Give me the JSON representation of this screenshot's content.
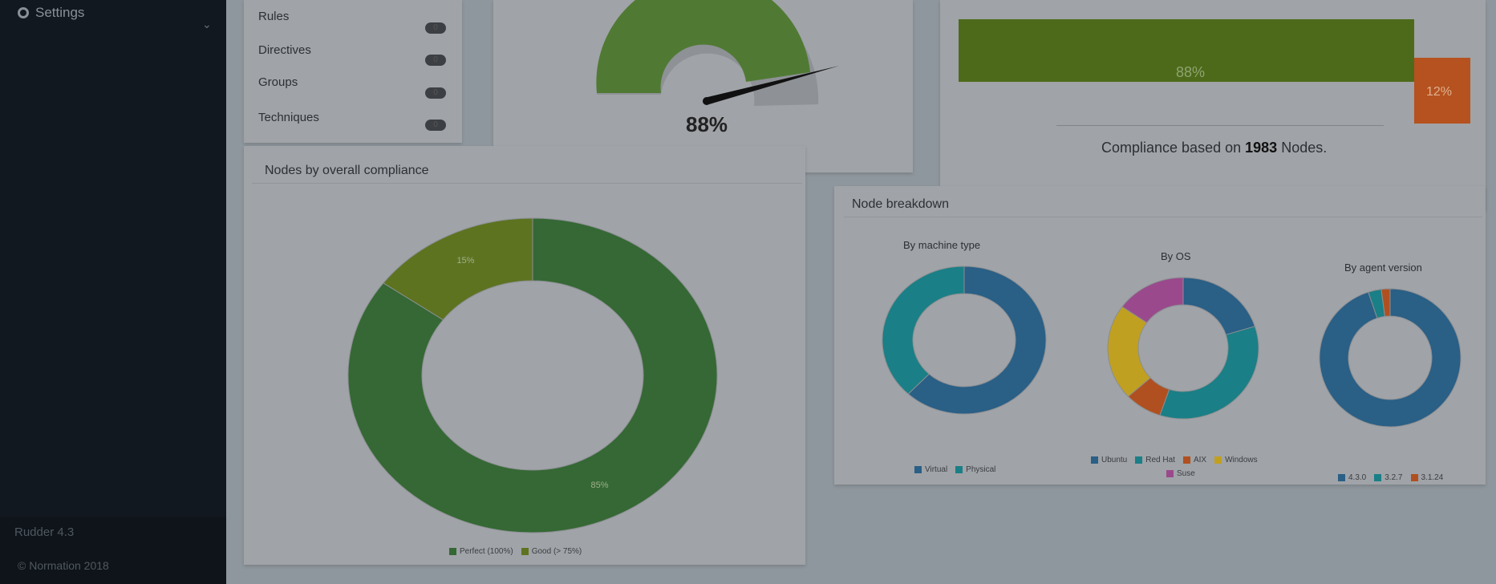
{
  "sidebar": {
    "settings_label": "Settings",
    "version": "Rudder 4.3",
    "copyright": "© Normation 2018"
  },
  "summary": {
    "rows": [
      {
        "label": "Rules",
        "count": "0"
      },
      {
        "label": "Directives",
        "count": "0"
      },
      {
        "label": "Groups",
        "count": "0"
      },
      {
        "label": "Techniques",
        "count": "0"
      }
    ]
  },
  "gauge": {
    "value": "88%",
    "value_num": 88
  },
  "compliance_bar": {
    "good_label": "88%",
    "bad_label": "12%",
    "good_pct": 88,
    "bad_pct": 12,
    "caption_prefix": "Compliance based on",
    "node_count": "1983",
    "caption_suffix": "Nodes.",
    "colors": {
      "good": "#4d6a1a",
      "bad": "#b5521f"
    }
  },
  "nodes_compliance": {
    "title": "Nodes by overall compliance",
    "legend": [
      "Perfect (100%)",
      "Good (> 75%)"
    ]
  },
  "breakdown": {
    "title": "Node breakdown",
    "machine_title": "By machine type",
    "os_title": "By OS",
    "agent_title": "By agent version",
    "machine_legend": [
      "Virtual",
      "Physical"
    ],
    "os_legend": [
      "Ubuntu",
      "Red Hat",
      "AIX",
      "Windows",
      "Suse"
    ],
    "agent_legend": [
      "4.3.0",
      "3.2.7",
      "3.1.24"
    ]
  },
  "chart_data": [
    {
      "type": "pie",
      "title": "Nodes by overall compliance",
      "categories": [
        "Perfect (100%)",
        "Good (> 75%)"
      ],
      "values": [
        85,
        15
      ],
      "labels": [
        "85%",
        "15%"
      ],
      "colors": [
        "#356834",
        "#5d7320"
      ]
    },
    {
      "type": "pie",
      "title": "By machine type",
      "categories": [
        "Virtual",
        "Physical"
      ],
      "values": [
        62,
        38
      ],
      "colors": [
        "#2a5f86",
        "#1a7f86"
      ]
    },
    {
      "type": "pie",
      "title": "By OS",
      "categories": [
        "Ubuntu",
        "Red Hat",
        "AIX",
        "Windows",
        "Suse"
      ],
      "values": [
        20,
        35,
        8,
        22,
        15
      ],
      "colors": [
        "#2a5f86",
        "#1a7f86",
        "#b05020",
        "#c0a020",
        "#9a4a8c"
      ]
    },
    {
      "type": "pie",
      "title": "By agent version",
      "categories": [
        "4.3.0",
        "3.2.7",
        "3.1.24"
      ],
      "values": [
        95,
        3,
        2
      ],
      "colors": [
        "#2a5f86",
        "#1a7f86",
        "#b05020"
      ]
    }
  ]
}
